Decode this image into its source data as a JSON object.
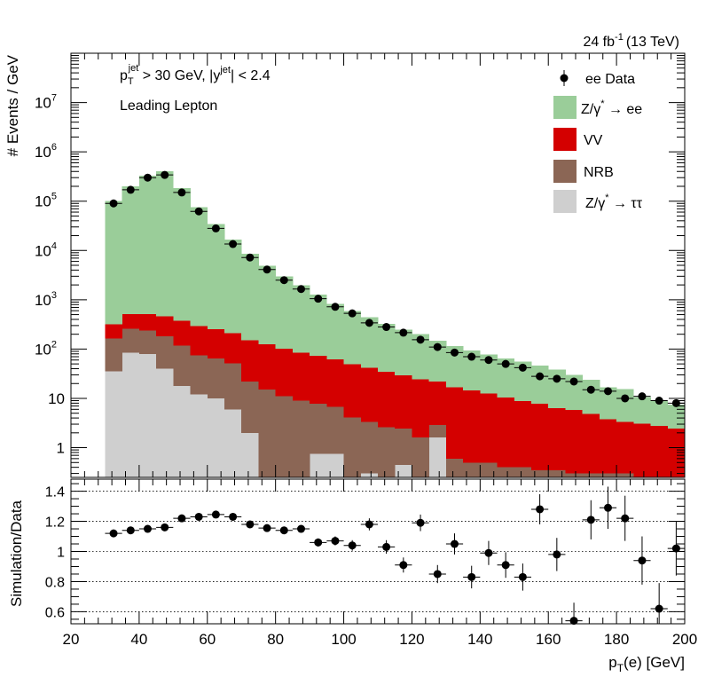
{
  "header": {
    "lumi": "24 fb",
    "lumi_exp": "-1",
    "energy": "(13 TeV)"
  },
  "annotations": {
    "cut_pt": "p",
    "cut_pt_sub": "T",
    "cut_pt_sup": "jet",
    "cut_pt_rest": " > 30 GeV,  |y",
    "cut_y_sup": "jet",
    "cut_y_rest": "| < 2.4",
    "selection": "Leading Lepton"
  },
  "legend": {
    "data": "ee Data",
    "zee": "Z/γ",
    "zee_sup": "*",
    "zee_rest": " → ee",
    "vv": "VV",
    "nrb": "NRB",
    "ztt": "Z/γ",
    "ztt_sup": "*",
    "ztt_rest": " → ττ"
  },
  "chart_data": [
    {
      "type": "bar",
      "stacked": true,
      "ylabel": "# Events / GeV",
      "yscale": "log",
      "xlim": [
        20,
        200
      ],
      "ylim": [
        0.25,
        100000000
      ],
      "y_tick_labels": [
        "1",
        "10",
        "10^2",
        "10^3",
        "10^4",
        "10^5",
        "10^6",
        "10^7"
      ],
      "bin_edges": [
        30,
        35,
        40,
        45,
        50,
        55,
        60,
        65,
        70,
        75,
        80,
        85,
        90,
        95,
        100,
        105,
        110,
        115,
        120,
        125,
        130,
        135,
        140,
        145,
        150,
        155,
        160,
        165,
        170,
        175,
        180,
        185,
        190,
        195,
        200
      ],
      "colors": {
        "ztt": "#cfcfcf",
        "nrb": "#8b6655",
        "vv": "#d40000",
        "zee": "#9acd99"
      },
      "series": [
        {
          "name": "Z/γ* → ττ",
          "key": "ztt",
          "values": [
            35,
            85,
            80,
            40,
            18,
            12,
            10,
            6,
            2,
            0.1,
            0.1,
            0.1,
            0.75,
            0.75,
            0.1,
            0.3,
            0.1,
            0.45,
            0.1,
            1.6,
            0.1,
            0.1,
            0.1,
            0.1,
            0.1,
            0.1,
            0.1,
            0.1,
            0.1,
            0.1,
            0.1,
            0.1,
            0.1,
            0.1
          ]
        },
        {
          "name": "NRB",
          "key": "nrb",
          "values": [
            130,
            175,
            160,
            140,
            100,
            62,
            55,
            45,
            20,
            15,
            11,
            9,
            7,
            6,
            4,
            3,
            2.5,
            2.0,
            1.5,
            1.3,
            0.5,
            0.4,
            0.4,
            0.3,
            0.3,
            0.25,
            0.25,
            0.2,
            0.2,
            0.2,
            0.2,
            0.15,
            0.15,
            0.15
          ]
        },
        {
          "name": "VV",
          "key": "vv",
          "values": [
            150,
            250,
            270,
            280,
            260,
            220,
            190,
            160,
            130,
            110,
            90,
            75,
            65,
            55,
            45,
            38,
            32,
            27,
            23,
            19,
            16,
            14,
            12,
            10,
            8.5,
            7.5,
            6,
            5.5,
            4.5,
            3.5,
            3,
            2.8,
            2.5,
            2.2
          ]
        },
        {
          "name": "Z/γ* → ee",
          "key": "zee",
          "values": [
            100000,
            200000,
            330000,
            400000,
            185000,
            75000,
            34000,
            16500,
            8400,
            4800,
            2900,
            1900,
            1200,
            770,
            540,
            400,
            290,
            220,
            175,
            125,
            98,
            80,
            66,
            54,
            47,
            38,
            32,
            24,
            19,
            13,
            12,
            7.5,
            6,
            5
          ]
        }
      ],
      "data": {
        "name": "ee Data",
        "x": [
          32.5,
          37.5,
          42.5,
          47.5,
          52.5,
          57.5,
          62.5,
          67.5,
          72.5,
          77.5,
          82.5,
          87.5,
          92.5,
          97.5,
          102.5,
          107.5,
          112.5,
          117.5,
          122.5,
          127.5,
          132.5,
          137.5,
          142.5,
          147.5,
          152.5,
          157.5,
          162.5,
          167.5,
          172.5,
          177.5,
          182.5,
          187.5,
          192.5,
          197.5
        ],
        "y": [
          90000,
          170000,
          300000,
          340000,
          150000,
          62000,
          28000,
          13500,
          7200,
          4100,
          2500,
          1650,
          1050,
          720,
          530,
          340,
          280,
          215,
          155,
          110,
          85,
          70,
          60,
          50,
          42,
          28,
          25,
          22,
          15,
          14,
          10,
          11,
          9,
          8
        ]
      }
    },
    {
      "type": "scatter",
      "xlabel": "p",
      "xlabel_sub": "T",
      "xlabel_rest": "(e) [GeV]",
      "ylabel": "Simulation/Data",
      "xlim": [
        20,
        200
      ],
      "ylim": [
        0.52,
        1.48
      ],
      "x_tick_labels": [
        "20",
        "40",
        "60",
        "80",
        "100",
        "120",
        "140",
        "160",
        "180",
        "200"
      ],
      "y_tick_labels": [
        "0.6",
        "0.8",
        "1",
        "1.2",
        "1.4"
      ],
      "gridlines": [
        0.6,
        0.8,
        1.0,
        1.2,
        1.4
      ],
      "x": [
        32.5,
        37.5,
        42.5,
        47.5,
        52.5,
        57.5,
        62.5,
        67.5,
        72.5,
        77.5,
        82.5,
        87.5,
        92.5,
        97.5,
        102.5,
        107.5,
        112.5,
        117.5,
        122.5,
        127.5,
        132.5,
        137.5,
        142.5,
        147.5,
        152.5,
        157.5,
        162.5,
        167.5,
        172.5,
        177.5,
        182.5,
        187.5,
        192.5,
        197.5
      ],
      "y": [
        1.12,
        1.14,
        1.15,
        1.16,
        1.22,
        1.23,
        1.245,
        1.23,
        1.18,
        1.155,
        1.14,
        1.15,
        1.06,
        1.07,
        1.04,
        1.18,
        1.03,
        0.91,
        1.19,
        0.85,
        1.05,
        0.83,
        0.99,
        0.91,
        0.83,
        1.28,
        0.98,
        0.54,
        1.21,
        1.29,
        1.22,
        0.94,
        0.62,
        1.02
      ],
      "yerr": [
        0.005,
        0.005,
        0.005,
        0.005,
        0.006,
        0.007,
        0.008,
        0.01,
        0.012,
        0.015,
        0.018,
        0.022,
        0.027,
        0.03,
        0.035,
        0.04,
        0.045,
        0.05,
        0.055,
        0.06,
        0.07,
        0.075,
        0.08,
        0.085,
        0.09,
        0.1,
        0.11,
        0.12,
        0.13,
        0.14,
        0.15,
        0.16,
        0.17,
        0.18
      ]
    }
  ]
}
